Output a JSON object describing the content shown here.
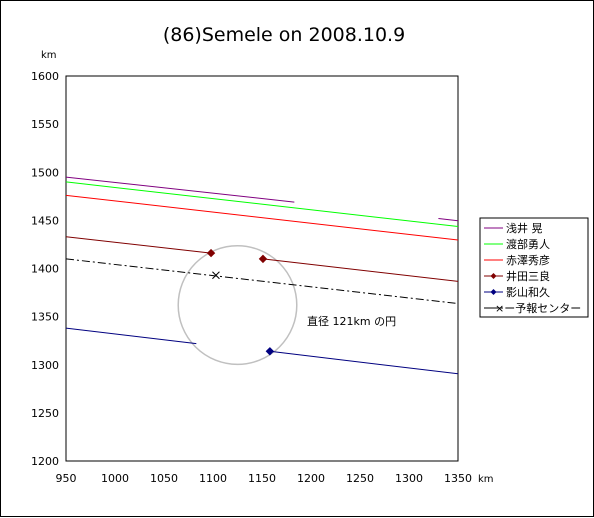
{
  "chart_data": {
    "type": "line",
    "title": "(86)Semele on 2008.10.9",
    "xunit": "km",
    "yunit": "km",
    "xlim": [
      950,
      1350
    ],
    "ylim": [
      1200,
      1600
    ],
    "xticks": [
      950,
      1000,
      1050,
      1100,
      1150,
      1200,
      1250,
      1300,
      1350
    ],
    "yticks": [
      1200,
      1250,
      1300,
      1350,
      1400,
      1450,
      1500,
      1550,
      1600
    ],
    "grid": false,
    "legend_position": "right",
    "series": [
      {
        "name": "浅井 晃",
        "color": "#800080",
        "marker": "none",
        "segments": [
          [
            [
              950,
              1495
            ],
            [
              1183,
              1469
            ]
          ],
          [
            [
              1330,
              1452
            ],
            [
              1355,
              1449
            ]
          ]
        ]
      },
      {
        "name": "渡部勇人",
        "color": "#00ff00",
        "marker": "none",
        "segments": [
          [
            [
              950,
              1490
            ],
            [
              1355,
              1443
            ]
          ]
        ]
      },
      {
        "name": "赤澤秀彦",
        "color": "#ff0000",
        "marker": "none",
        "segments": [
          [
            [
              950,
              1476
            ],
            [
              1355,
              1429
            ]
          ]
        ]
      },
      {
        "name": "井田三良",
        "color": "#800000",
        "marker": "diamond",
        "segments": [
          [
            [
              950,
              1433
            ],
            [
              1098,
              1416
            ]
          ],
          [
            [
              1151,
              1410
            ],
            [
              1355,
              1386
            ]
          ]
        ],
        "points": [
          [
            1098,
            1416
          ],
          [
            1151,
            1410
          ]
        ]
      },
      {
        "name": "影山和久",
        "color": "#000080",
        "marker": "diamond",
        "segments": [
          [
            [
              950,
              1338
            ],
            [
              1083,
              1322
            ]
          ],
          [
            [
              1158,
              1314
            ],
            [
              1355,
              1290
            ]
          ]
        ],
        "points": [
          [
            1158,
            1314
          ]
        ]
      },
      {
        "name": "ー×ー予報センター",
        "color": "#000000",
        "marker": "x",
        "dash": "dash-dot",
        "segments": [
          [
            [
              950,
              1410
            ],
            [
              1355,
              1363
            ]
          ]
        ],
        "points": [
          [
            1103,
            1393
          ]
        ]
      }
    ],
    "circle": {
      "cx": 1125,
      "cy": 1362,
      "diameter_km": 121,
      "color": "#c0c0c0"
    },
    "annotation": "直径 121km の円"
  }
}
